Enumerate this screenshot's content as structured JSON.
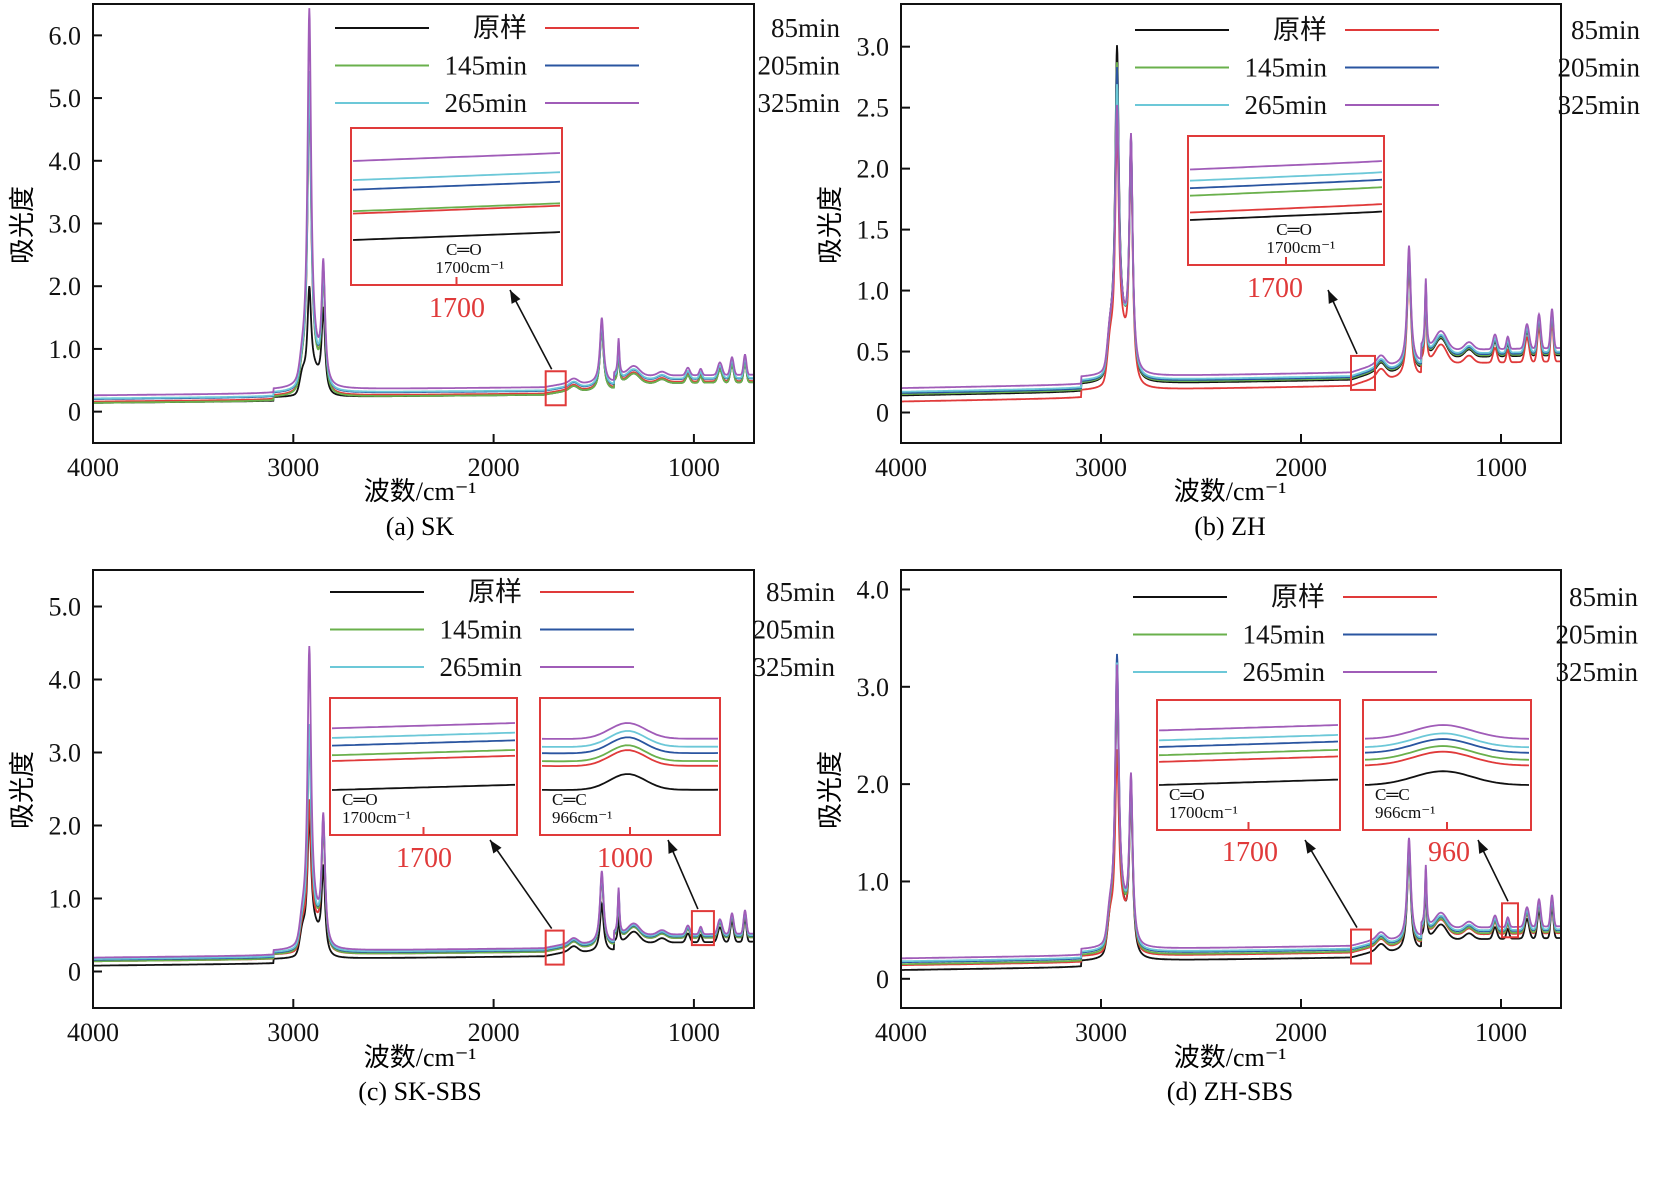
{
  "figure": {
    "legend_labels": [
      "原样",
      "85min",
      "145min",
      "205min",
      "265min",
      "325min"
    ],
    "series_colors": [
      "#111111",
      "#e03a3a",
      "#6ab04c",
      "#2a55a0",
      "#6cc8d8",
      "#a05cb8"
    ],
    "inset_color": "#e03a3a",
    "ylabel": "吸光度",
    "xlabel": "波数/cm⁻¹",
    "xlim": [
      4000,
      700
    ],
    "xticks": [
      4000,
      3000,
      2000,
      1000
    ]
  },
  "chart_data": [
    {
      "type": "line",
      "caption": "(a) SK",
      "title": "",
      "xlabel": "波数/cm⁻¹",
      "ylabel": "吸光度",
      "xlim": [
        4000,
        700
      ],
      "ylim": [
        -0.5,
        6.5
      ],
      "yticks": [
        0,
        1.0,
        2.0,
        3.0,
        4.0,
        5.0,
        6.0
      ],
      "ytick_labels": [
        "0",
        "1.0",
        "2.0",
        "3.0",
        "4.0",
        "5.0",
        "6.0"
      ],
      "legend": "top-right",
      "baseline_offsets": [
        0.0,
        0.02,
        0.0,
        0.06,
        0.07,
        0.12
      ],
      "peaks": [
        {
          "x": 2920,
          "heights": [
            1.45,
            4.5,
            4.6,
            4.7,
            4.8,
            5.75
          ]
        },
        {
          "x": 2850,
          "heights": [
            1.3,
            1.75,
            1.75,
            1.8,
            1.8,
            1.85
          ]
        },
        {
          "x": 1460,
          "heights": [
            1.0,
            1.0,
            1.0,
            1.02,
            1.03,
            1.05
          ]
        },
        {
          "x": 1376,
          "heights": [
            0.55,
            0.55,
            0.55,
            0.56,
            0.57,
            0.58
          ]
        }
      ],
      "insets": [
        {
          "label": "1700",
          "annotation": [
            "C═O",
            "1700cm⁻¹"
          ],
          "region": [
            1730,
            1670
          ]
        }
      ]
    },
    {
      "type": "line",
      "caption": "(b) ZH",
      "title": "",
      "xlabel": "波数/cm⁻¹",
      "ylabel": "吸光度",
      "xlim": [
        4000,
        700
      ],
      "ylim": [
        -0.25,
        3.35
      ],
      "yticks": [
        0,
        0.5,
        1.0,
        1.5,
        2.0,
        2.5,
        3.0
      ],
      "ytick_labels": [
        "0",
        "0.5",
        "1.0",
        "1.5",
        "2.0",
        "2.5",
        "3.0"
      ],
      "legend": "top-right",
      "baseline_offsets": [
        0.0,
        -0.05,
        0.01,
        0.02,
        0.03,
        0.06
      ],
      "peaks": [
        {
          "x": 2920,
          "heights": [
            2.45,
            1.85,
            2.3,
            2.25,
            2.1,
            1.9
          ]
        },
        {
          "x": 2850,
          "heights": [
            1.85,
            1.8,
            1.85,
            1.85,
            1.85,
            1.85
          ]
        },
        {
          "x": 1460,
          "heights": [
            0.95,
            0.95,
            0.95,
            0.96,
            0.97,
            0.98
          ]
        },
        {
          "x": 1376,
          "heights": [
            0.55,
            0.55,
            0.55,
            0.56,
            0.56,
            0.57
          ]
        }
      ],
      "insets": [
        {
          "label": "1700",
          "annotation": [
            "C═O",
            "1700cm⁻¹"
          ],
          "region": [
            1740,
            1660
          ]
        }
      ]
    },
    {
      "type": "line",
      "caption": "(c) SK-SBS",
      "title": "",
      "xlabel": "波数/cm⁻¹",
      "ylabel": "吸光度",
      "xlim": [
        4000,
        700
      ],
      "ylim": [
        -0.5,
        5.5
      ],
      "yticks": [
        0,
        1.0,
        2.0,
        3.0,
        4.0,
        5.0
      ],
      "ytick_labels": [
        "0",
        "1.0",
        "2.0",
        "3.0",
        "4.0",
        "5.0"
      ],
      "legend": "top-right",
      "baseline_offsets": [
        -0.06,
        0.0,
        0.0,
        0.02,
        0.03,
        0.05
      ],
      "peaks": [
        {
          "x": 2920,
          "heights": [
            1.65,
            1.8,
            2.7,
            2.75,
            2.8,
            3.85
          ]
        },
        {
          "x": 2850,
          "heights": [
            1.15,
            1.65,
            1.65,
            1.7,
            1.7,
            1.7
          ]
        },
        {
          "x": 1460,
          "heights": [
            0.65,
            0.95,
            0.95,
            0.97,
            0.98,
            1.0
          ]
        },
        {
          "x": 1376,
          "heights": [
            0.35,
            0.6,
            0.6,
            0.61,
            0.62,
            0.63
          ]
        }
      ],
      "insets": [
        {
          "label": "1700",
          "annotation": [
            "C═O",
            "1700cm⁻¹"
          ],
          "region": [
            1730,
            1680
          ]
        },
        {
          "label": "1000",
          "annotation": [
            "C═C",
            "966cm⁻¹"
          ],
          "region": [
            1000,
            930
          ]
        }
      ]
    },
    {
      "type": "line",
      "caption": "(d) ZH-SBS",
      "title": "",
      "xlabel": "波数/cm⁻¹",
      "ylabel": "吸光度",
      "xlim": [
        4000,
        700
      ],
      "ylim": [
        -0.3,
        4.2
      ],
      "yticks": [
        0,
        1.0,
        2.0,
        3.0,
        4.0
      ],
      "ytick_labels": [
        "0",
        "1.0",
        "2.0",
        "3.0",
        "4.0"
      ],
      "legend": "top-right",
      "baseline_offsets": [
        -0.05,
        0.0,
        0.01,
        0.03,
        0.04,
        0.07
      ],
      "peaks": [
        {
          "x": 2920,
          "heights": [
            2.55,
            1.8,
            2.6,
            2.75,
            2.65,
            2.6
          ]
        },
        {
          "x": 2850,
          "heights": [
            1.6,
            1.6,
            1.62,
            1.63,
            1.64,
            1.65
          ]
        },
        {
          "x": 1460,
          "heights": [
            1.0,
            1.0,
            1.0,
            1.02,
            1.03,
            1.05
          ]
        },
        {
          "x": 1376,
          "heights": [
            0.6,
            0.6,
            0.6,
            0.61,
            0.62,
            0.63
          ]
        }
      ],
      "insets": [
        {
          "label": "1700",
          "annotation": [
            "C═O",
            "1700cm⁻¹"
          ],
          "region": [
            1740,
            1680
          ]
        },
        {
          "label": "960",
          "annotation": [
            "C═C",
            "966cm⁻¹"
          ],
          "region": [
            985,
            945
          ]
        }
      ]
    }
  ]
}
